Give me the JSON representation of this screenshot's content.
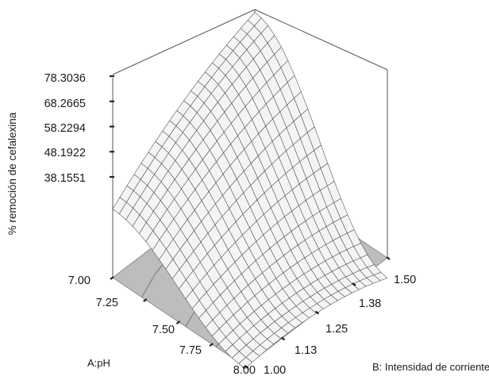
{
  "chart_data": {
    "type": "surface",
    "zlabel": "% remoción de cefalexina",
    "xlabel": "A:pH",
    "ylabel": "B: Intensidad de corriente",
    "z_ticks": [
      "78.3036",
      "68.2665",
      "58.2294",
      "48.1922",
      "38.1551"
    ],
    "z_tick_values": [
      78.3036,
      68.2665,
      58.2294,
      48.1922,
      38.1551
    ],
    "a_ticks": [
      "7.00",
      "7.25",
      "7.50",
      "7.75",
      "8.00"
    ],
    "a_tick_values": [
      7.0,
      7.25,
      7.5,
      7.75,
      8.0
    ],
    "b_ticks": [
      "1.00",
      "1.13",
      "1.25",
      "1.38",
      "1.50"
    ],
    "b_tick_values": [
      1.0,
      1.13,
      1.25,
      1.38,
      1.5
    ],
    "a_range": [
      7.0,
      8.0
    ],
    "b_range": [
      1.0,
      1.5
    ],
    "z_range": [
      28.1,
      88.4
    ],
    "grid_size": 21,
    "corner_values": {
      "pH7.00_I1.00": 58.2,
      "pH7.00_I1.50": 88.3,
      "pH8.00_I1.00": 32.0,
      "pH8.00_I1.50": 48.5,
      "minimum_region": 30.0
    },
    "colors": {
      "surface_face": "#f4f4f4",
      "surface_mesh": "#4a4a4a",
      "floor": "#bdbdbd",
      "floor_edge": "#8c8c8c",
      "box_lines": "#555555",
      "contour": "#707070"
    }
  }
}
